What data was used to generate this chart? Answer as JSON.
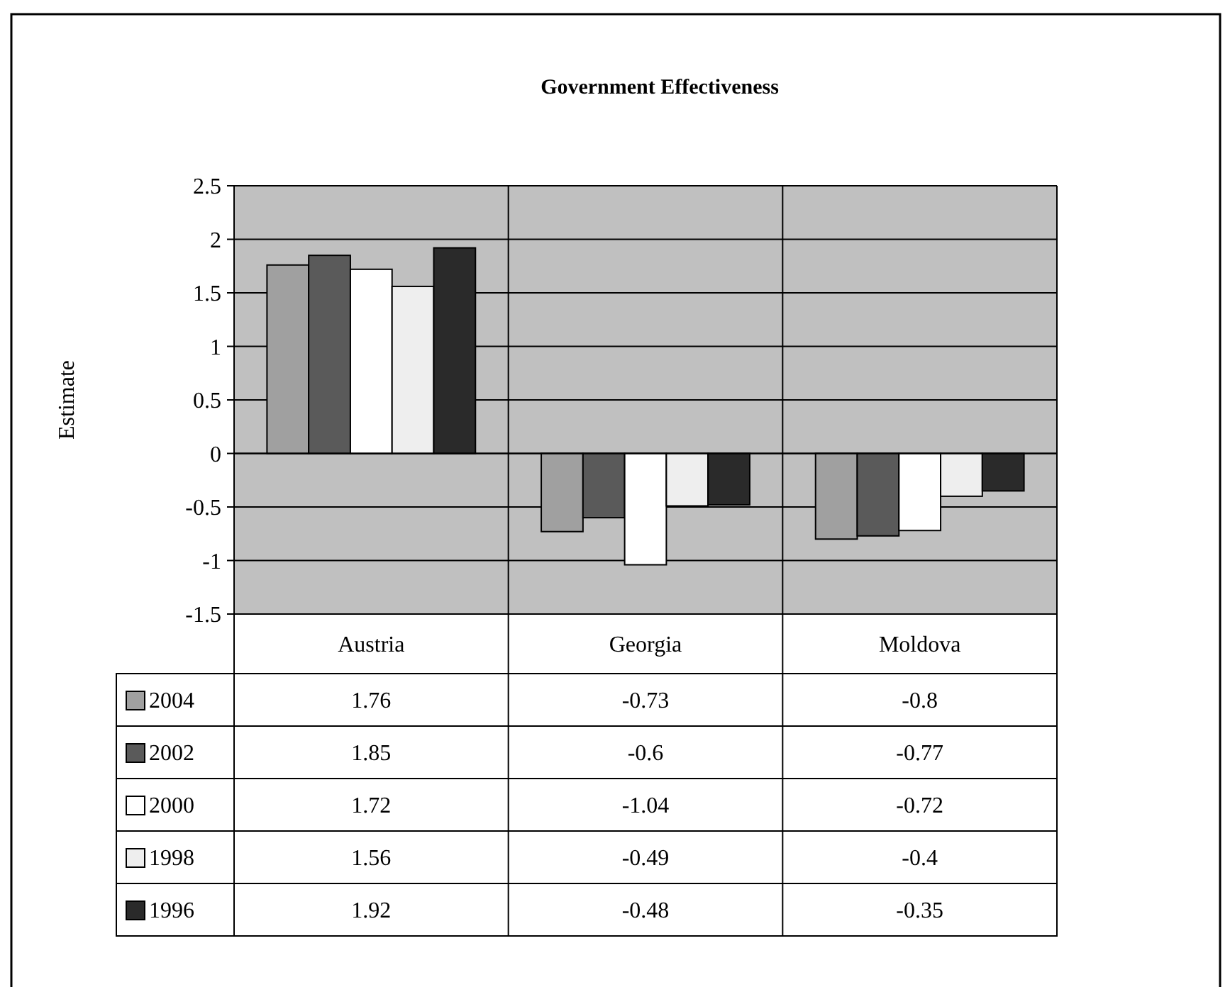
{
  "chart_data": {
    "type": "bar",
    "title": "Government Effectiveness",
    "ylabel": "Estimate",
    "categories": [
      "Austria",
      "Georgia",
      "Moldova"
    ],
    "series": [
      {
        "name": "2004",
        "color": "#a0a0a0",
        "values": [
          1.76,
          -0.73,
          -0.8
        ]
      },
      {
        "name": "2002",
        "color": "#5a5a5a",
        "values": [
          1.85,
          -0.6,
          -0.77
        ]
      },
      {
        "name": "2000",
        "color": "#ffffff",
        "values": [
          1.72,
          -1.04,
          -0.72
        ]
      },
      {
        "name": "1998",
        "color": "#eeeeee",
        "values": [
          1.56,
          -0.49,
          -0.4
        ]
      },
      {
        "name": "1996",
        "color": "#2a2a2a",
        "values": [
          1.92,
          -0.48,
          -0.35
        ]
      }
    ],
    "ylim": [
      -1.5,
      2.5
    ],
    "yticks": [
      -1.5,
      -1,
      -0.5,
      0,
      0.5,
      1,
      1.5,
      2,
      2.5
    ],
    "grid": "y",
    "legend": "bottom",
    "data_labels": true
  }
}
